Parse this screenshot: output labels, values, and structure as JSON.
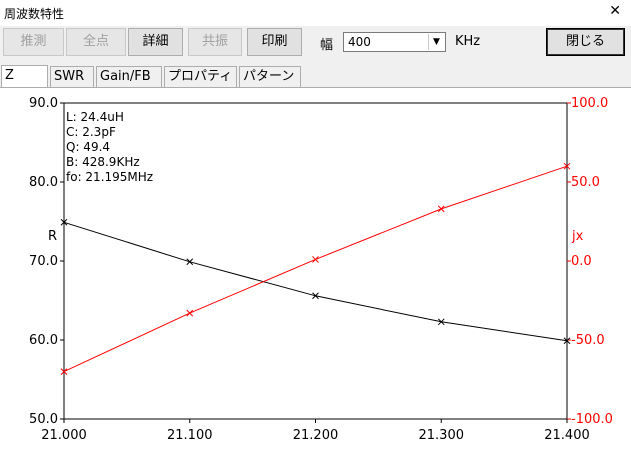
{
  "window": {
    "title": "周波数特性",
    "close_glyph": "✕"
  },
  "toolbar": {
    "buttons": [
      {
        "label": "推測",
        "enabled": false
      },
      {
        "label": "全点",
        "enabled": false
      },
      {
        "label": "詳細",
        "enabled": true
      },
      {
        "label": "共振",
        "enabled": false
      },
      {
        "label": "印刷",
        "enabled": true
      }
    ],
    "width_label": "幅",
    "width_value": "400",
    "unit": "KHz",
    "close_label": "閉じる"
  },
  "tabs": [
    {
      "label": "Z",
      "active": true
    },
    {
      "label": "SWR",
      "active": false
    },
    {
      "label": "Gain/FB",
      "active": false
    },
    {
      "label": "プロパティ",
      "active": false
    },
    {
      "label": "パターン",
      "active": false
    }
  ],
  "chart_info": [
    "L: 24.4uH",
    "C: 2.3pF",
    "Q: 49.4",
    "B: 428.9KHz",
    "fo: 21.195MHz"
  ],
  "chart_data": {
    "type": "line",
    "x": [
      21.0,
      21.1,
      21.2,
      21.3,
      21.4
    ],
    "x_tick_labels": [
      "21.000",
      "21.100",
      "21.200",
      "21.300",
      "21.400"
    ],
    "xlim": [
      21.0,
      21.4
    ],
    "ylabel_left": "R",
    "ylabel_right": "jx",
    "ylim_left": [
      50,
      90
    ],
    "ylim_right": [
      -100,
      100
    ],
    "y_tick_labels_left": [
      "90.0",
      "80.0",
      "70.0",
      "60.0",
      "50.0"
    ],
    "y_tick_labels_right": [
      "100.0",
      "50.0",
      "0.0",
      "-50.0",
      "-100.0"
    ],
    "grid": false,
    "series": [
      {
        "axis": "left",
        "color": "#000000",
        "marker": "x",
        "values": [
          74.9,
          69.9,
          65.6,
          62.3,
          59.9
        ]
      },
      {
        "axis": "right",
        "color": "#ff0000",
        "marker": "x",
        "values": [
          -70.0,
          -33.0,
          1.0,
          33.0,
          60.0
        ]
      }
    ],
    "colors": {
      "left_axis": "#000000",
      "right_axis": "#ff0000"
    }
  }
}
